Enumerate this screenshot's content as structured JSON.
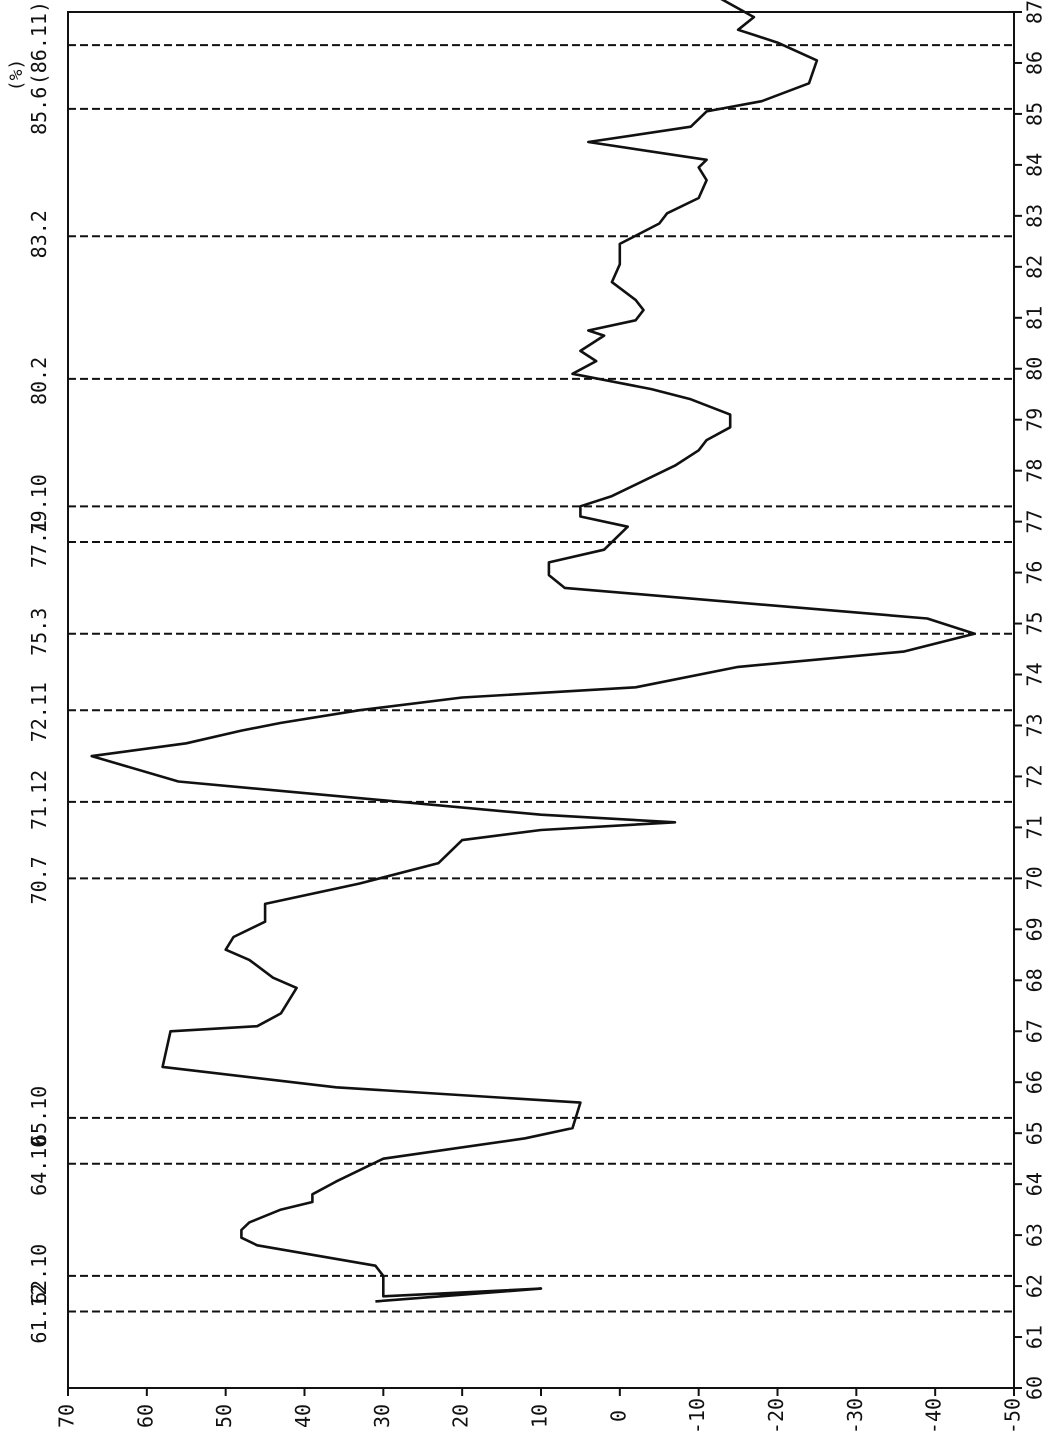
{
  "chart_data": {
    "type": "line",
    "orientation": "rotated-90-clockwise",
    "title": "",
    "xlabel": "",
    "ylabel": "",
    "unit_label": "(%)",
    "xlim": [
      60,
      87
    ],
    "ylim": [
      -50,
      70
    ],
    "x_ticks": [
      "60",
      "61",
      "62",
      "63",
      "64",
      "65",
      "66",
      "67",
      "68",
      "69",
      "70",
      "71",
      "72",
      "73",
      "74",
      "75",
      "76",
      "77",
      "78",
      "79",
      "80",
      "81",
      "82",
      "83",
      "84",
      "85",
      "86",
      "87"
    ],
    "y_ticks": [
      "70",
      "60",
      "50",
      "40",
      "30",
      "20",
      "10",
      "0",
      "-10",
      "-20",
      "-30",
      "-40",
      "-50"
    ],
    "grid": false,
    "series": [
      {
        "name": "",
        "x": [
          61.7,
          61.95,
          61.8,
          62.2,
          62.4,
          62.8,
          62.95,
          63.1,
          63.25,
          63.5,
          63.65,
          63.8,
          64.05,
          64.5,
          64.9,
          65.1,
          65.6,
          65.9,
          66.3,
          67.0,
          67.1,
          67.35,
          67.85,
          68.05,
          68.4,
          68.6,
          68.85,
          69.15,
          69.5,
          69.9,
          70.3,
          70.75,
          70.95,
          71.1,
          71.25,
          71.9,
          72.4,
          72.65,
          72.9,
          73.05,
          73.3,
          73.55,
          73.75,
          74.15,
          74.45,
          74.8,
          75.1,
          75.7,
          75.95,
          76.2,
          76.45,
          76.9,
          77.1,
          77.3,
          77.5,
          78.1,
          78.4,
          78.6,
          78.85,
          79.1,
          79.4,
          79.6,
          79.9,
          80.15,
          80.35,
          80.65,
          80.75,
          80.95,
          81.15,
          81.35,
          81.7,
          82.05,
          82.45,
          82.85,
          83.05,
          83.35,
          83.7,
          83.95,
          84.1,
          84.45,
          84.75,
          85.05,
          85.25,
          85.6,
          86.05,
          86.4,
          86.55,
          86.65,
          86.9,
          87.5
        ],
        "y": [
          31,
          10,
          30,
          30,
          31,
          46,
          48,
          48,
          47,
          43,
          39,
          39,
          36,
          30,
          12,
          6,
          5,
          36,
          58,
          57,
          46,
          43,
          41,
          44,
          47,
          50,
          49,
          45,
          45,
          33,
          23,
          20,
          10,
          -7,
          10,
          56,
          67,
          55,
          48,
          43,
          33,
          20,
          -2,
          -15,
          -36,
          -45,
          -39,
          7,
          9,
          9,
          2,
          -1,
          5,
          5,
          1,
          -7,
          -10,
          -11,
          -14,
          -14,
          -9,
          -4,
          6,
          3,
          5,
          2,
          4,
          -2,
          -3,
          -2,
          1,
          0,
          0,
          -5,
          -6,
          -10,
          -11,
          -10,
          -11,
          4,
          -9,
          -11,
          -18,
          -24,
          -25,
          -20,
          -17,
          -15,
          -17,
          -10
        ]
      }
    ],
    "reference_lines": [
      {
        "x": 61.5,
        "label": "61.12"
      },
      {
        "x": 62.2,
        "label": "62.10"
      },
      {
        "x": 64.4,
        "label": "64.10"
      },
      {
        "x": 65.3,
        "label": "65.10"
      },
      {
        "x": 70.0,
        "label": "70.7"
      },
      {
        "x": 71.5,
        "label": "71.12"
      },
      {
        "x": 73.3,
        "label": "72.11"
      },
      {
        "x": 74.8,
        "label": "75.3"
      },
      {
        "x": 76.6,
        "label": "77.1"
      },
      {
        "x": 77.3,
        "label": "79.10"
      },
      {
        "x": 79.8,
        "label": "80.2"
      },
      {
        "x": 82.6,
        "label": "83.2"
      },
      {
        "x": 85.1,
        "label": "85.6"
      },
      {
        "x": 86.35,
        "label": "(86.11)"
      }
    ],
    "annotations": [
      {
        "text": "(%)"
      }
    ]
  }
}
